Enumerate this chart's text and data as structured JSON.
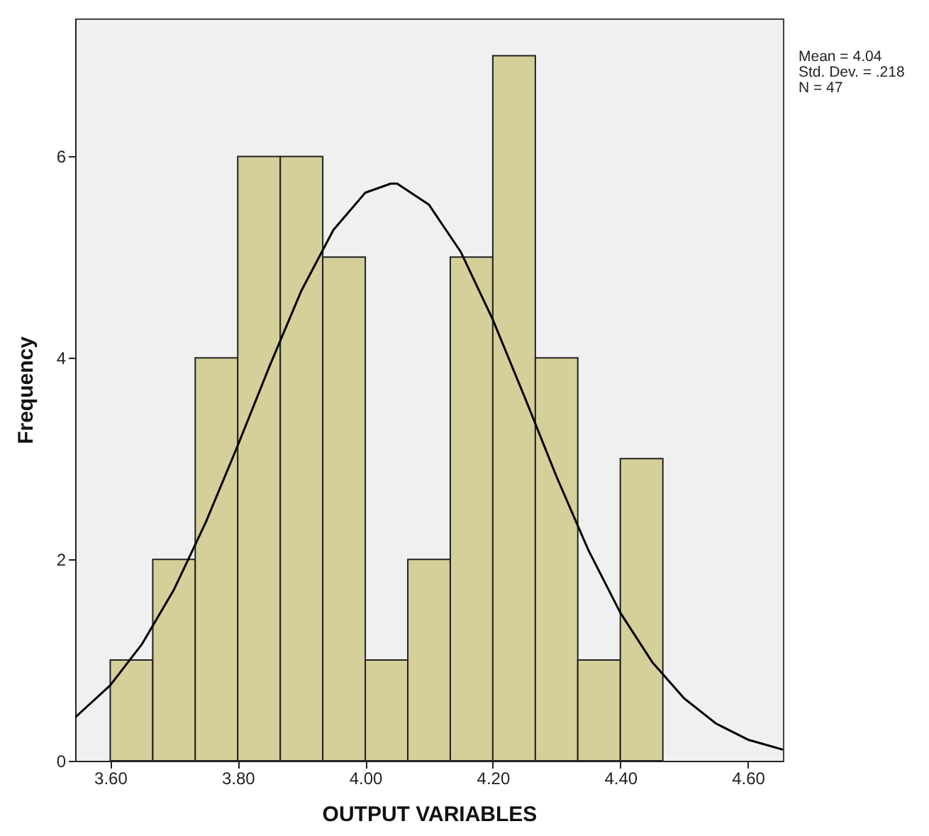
{
  "chart_data": {
    "type": "histogram",
    "xlabel": "OUTPUT VARIABLES",
    "ylabel": "Frequency",
    "bins": [
      3.6,
      3.6667,
      3.7333,
      3.8,
      3.8667,
      3.9333,
      4.0,
      4.0667,
      4.1333,
      4.2,
      4.2667,
      4.3333,
      4.4,
      4.4667
    ],
    "values": [
      1,
      2,
      4,
      6,
      6,
      5,
      1,
      2,
      5,
      7,
      4,
      1,
      3
    ],
    "color": "#d5cf9a",
    "series": [
      {
        "type": "line",
        "color": "#000000",
        "x": [
          3.545,
          3.6,
          3.65,
          3.7,
          3.75,
          3.8,
          3.85,
          3.9,
          3.95,
          4.0,
          4.04,
          4.05,
          4.1,
          4.15,
          4.2,
          4.25,
          4.3,
          4.35,
          4.4,
          4.45,
          4.5,
          4.55,
          4.6,
          4.655
        ],
        "values": [
          0.43,
          0.75,
          1.16,
          1.7,
          2.37,
          3.13,
          3.92,
          4.67,
          5.27,
          5.64,
          5.73,
          5.73,
          5.52,
          5.05,
          4.38,
          3.61,
          2.82,
          2.09,
          1.47,
          0.98,
          0.62,
          0.37,
          0.21,
          0.11
        ]
      }
    ],
    "xlim": [
      3.545,
      4.655
    ],
    "xticks": [
      {
        "value": 3.6,
        "label": "3.60"
      },
      {
        "value": 3.8,
        "label": "3.80"
      },
      {
        "value": 4.0,
        "label": "4.00"
      },
      {
        "value": 4.2,
        "label": "4.20"
      },
      {
        "value": 4.4,
        "label": "4.40"
      },
      {
        "value": 4.6,
        "label": "4.60"
      }
    ],
    "ylim": [
      0,
      7.37
    ],
    "yticks": [
      0,
      2,
      4,
      6
    ],
    "grid": false,
    "annotations": [
      "Mean = 4.04",
      "Std. Dev. = .218",
      "N = 47"
    ]
  }
}
